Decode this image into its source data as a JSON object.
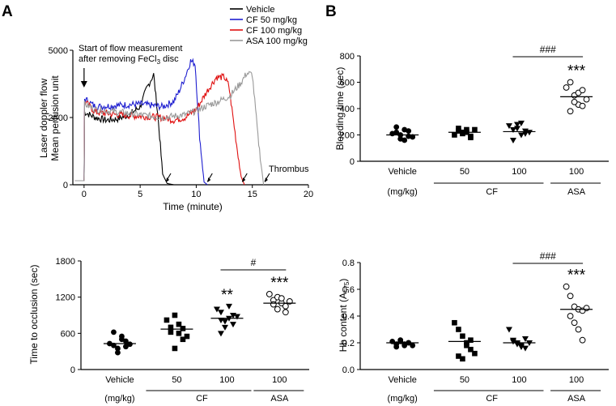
{
  "panel_labels": {
    "a": "A",
    "b": "B"
  },
  "colors": {
    "vehicle": "#000000",
    "cf50": "#1f1fd0",
    "cf100": "#e01010",
    "asa100": "#999999",
    "axis": "#000000"
  },
  "chart_data": [
    {
      "id": "flow",
      "type": "line",
      "ylabel": [
        "Laser doppler flow",
        "Mean perfusion unit"
      ],
      "xlabel": "Time (minute)",
      "xlim": [
        -1,
        20
      ],
      "ylim": [
        0,
        5000
      ],
      "xticks": [
        0,
        5,
        10,
        15,
        20
      ],
      "yticks": [
        0,
        2500,
        5000
      ],
      "annotation": {
        "line1": "Start of flow measurement",
        "line2_pre": "after removing FeCl",
        "line2_sub": "3",
        "line2_post": " disc"
      },
      "thrombus_label": "Thrombus",
      "series": [
        {
          "name": "Vehicle",
          "color": "#000000",
          "x": [
            -0.8,
            0,
            0.05,
            1,
            2,
            3,
            4,
            5,
            5.6,
            6.2,
            6.6,
            7,
            7.4,
            8
          ],
          "y": [
            150,
            150,
            2700,
            2500,
            2400,
            2450,
            2600,
            2900,
            3600,
            4100,
            2500,
            400,
            50,
            0
          ]
        },
        {
          "name": "CF 50 mg/kg",
          "color": "#1f1fd0",
          "x": [
            -0.8,
            0,
            0.05,
            1,
            3,
            5,
            7,
            8,
            8.5,
            9,
            9.5,
            9.9,
            10.3,
            10.7,
            11
          ],
          "y": [
            150,
            150,
            3200,
            2900,
            2950,
            3000,
            2900,
            3100,
            3500,
            4000,
            4600,
            4500,
            1800,
            100,
            0
          ]
        },
        {
          "name": "CF 100 mg/kg",
          "color": "#e01010",
          "x": [
            -0.8,
            0,
            0.05,
            1,
            3,
            5,
            7,
            8,
            9,
            10,
            11,
            11.8,
            12.5,
            12.9,
            13.6,
            14,
            14.3
          ],
          "y": [
            150,
            150,
            3100,
            2700,
            2600,
            2550,
            2500,
            2400,
            2500,
            2800,
            3500,
            4000,
            4000,
            3700,
            1500,
            300,
            0
          ]
        },
        {
          "name": "ASA 100 mg/kg",
          "color": "#999999",
          "x": [
            -0.8,
            0,
            0.05,
            1,
            3,
            5,
            7,
            8,
            9,
            10,
            11,
            12,
            13,
            14,
            14.5,
            15,
            15.5,
            16
          ],
          "y": [
            150,
            150,
            3000,
            2800,
            2700,
            2600,
            2500,
            2550,
            2600,
            2750,
            2950,
            3100,
            3300,
            3800,
            4150,
            4100,
            1800,
            0
          ]
        }
      ],
      "arrows_x": [
        7.3,
        11.0,
        14.1,
        16.1
      ]
    },
    {
      "id": "bleeding",
      "type": "scatter",
      "ylabel": "Bleeding time (sec)",
      "ylim": [
        0,
        800
      ],
      "yticks": [
        0,
        200,
        400,
        600,
        800
      ],
      "categories": [
        "Vehicle",
        "50",
        "100",
        "100"
      ],
      "unit_label": "(mg/kg)",
      "group_labels": [
        "CF",
        "ASA"
      ],
      "groups": [
        {
          "marker": "circle",
          "values": [
            210,
            260,
            170,
            240,
            190,
            220,
            200,
            160,
            230,
            185
          ],
          "mean": 200,
          "sig": ""
        },
        {
          "marker": "square",
          "values": [
            200,
            250,
            220,
            240,
            190,
            230,
            210,
            220,
            180,
            240
          ],
          "mean": 220,
          "sig": ""
        },
        {
          "marker": "tri-down",
          "values": [
            270,
            240,
            280,
            200,
            230,
            160,
            250,
            290,
            210,
            220
          ],
          "mean": 225,
          "sig": ""
        },
        {
          "marker": "open-circle",
          "values": [
            560,
            600,
            500,
            430,
            420,
            380,
            450,
            520,
            540,
            470
          ],
          "mean": 490,
          "sig": "***"
        }
      ],
      "bracket": {
        "from": 2,
        "to": 3,
        "label": "###"
      }
    },
    {
      "id": "occlusion",
      "type": "scatter",
      "ylabel": "Time to occlusion (sec)",
      "ylim": [
        0,
        1800
      ],
      "yticks": [
        0,
        600,
        1200,
        1800
      ],
      "categories": [
        "Vehicle",
        "50",
        "100",
        "100"
      ],
      "unit_label": "(mg/kg)",
      "group_labels": [
        "CF",
        "ASA"
      ],
      "groups": [
        {
          "marker": "circle",
          "values": [
            430,
            620,
            350,
            550,
            470,
            400,
            280,
            500,
            380,
            420
          ],
          "mean": 430,
          "sig": ""
        },
        {
          "marker": "square",
          "values": [
            820,
            700,
            900,
            600,
            500,
            620,
            350,
            750,
            680,
            550
          ],
          "mean": 670,
          "sig": ""
        },
        {
          "marker": "tri-down",
          "values": [
            1000,
            950,
            700,
            850,
            900,
            600,
            800,
            1050,
            750,
            880,
            820
          ],
          "mean": 850,
          "sig": "**"
        },
        {
          "marker": "open-circle",
          "values": [
            1250,
            1150,
            1200,
            1100,
            950,
            1080,
            1000,
            1180,
            1050,
            1130
          ],
          "mean": 1100,
          "sig": "***"
        }
      ],
      "bracket": {
        "from": 2,
        "to": 3,
        "label": "#"
      }
    },
    {
      "id": "hb",
      "type": "scatter",
      "ylabel_pre": "Hb content (A",
      "ylabel_sub": "575",
      "ylabel_post": ")",
      "ylim": [
        0,
        0.8
      ],
      "yticks": [
        0.0,
        0.2,
        0.4,
        0.6,
        0.8
      ],
      "categories": [
        "Vehicle",
        "50",
        "100",
        "100"
      ],
      "unit_label": "(mg/kg)",
      "group_labels": [
        "CF",
        "ASA"
      ],
      "groups": [
        {
          "marker": "circle",
          "values": [
            0.21,
            0.19,
            0.22,
            0.18,
            0.2,
            0.17,
            0.21,
            0.19,
            0.2,
            0.18
          ],
          "mean": 0.2,
          "sig": ""
        },
        {
          "marker": "square",
          "values": [
            0.35,
            0.3,
            0.25,
            0.2,
            0.15,
            0.1,
            0.08,
            0.18,
            0.22,
            0.12
          ],
          "mean": 0.21,
          "sig": ""
        },
        {
          "marker": "tri-down",
          "values": [
            0.3,
            0.22,
            0.2,
            0.18,
            0.16,
            0.21,
            0.19,
            0.17,
            0.23,
            0.2
          ],
          "mean": 0.2,
          "sig": ""
        },
        {
          "marker": "open-circle",
          "values": [
            0.62,
            0.55,
            0.47,
            0.45,
            0.44,
            0.4,
            0.35,
            0.3,
            0.22,
            0.46
          ],
          "mean": 0.45,
          "sig": "***"
        }
      ],
      "bracket": {
        "from": 2,
        "to": 3,
        "label": "###"
      }
    }
  ]
}
